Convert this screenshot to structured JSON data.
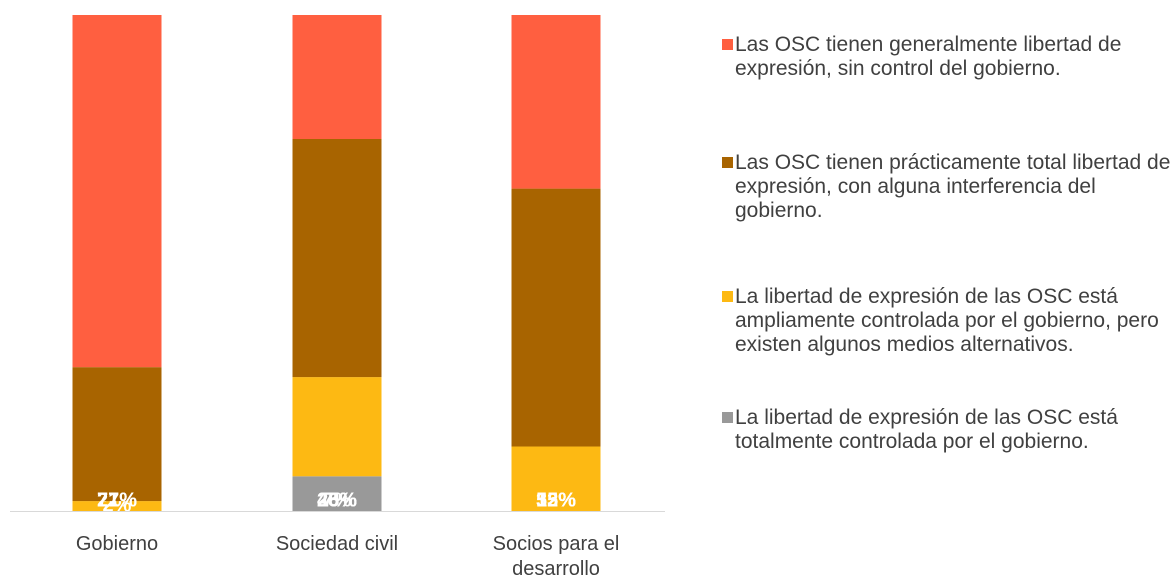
{
  "chart_data": {
    "type": "stacked_bar",
    "categories": [
      "Gobierno",
      "Sociedad civil",
      "Socios para el desarrollo"
    ],
    "series": [
      {
        "name": "Las OSC tienen generalmente libertad de expresión, sin control del gobierno.",
        "color": "#ff5f40",
        "values": [
          71,
          25,
          35
        ],
        "value_labels": [
          "71%",
          "25%",
          "35%"
        ]
      },
      {
        "name": "Las OSC tienen prácticamente total libertad de expresión, con alguna interferencia del gobierno.",
        "color": "#a86400",
        "values": [
          27,
          48,
          52
        ],
        "value_labels": [
          "27%",
          "48%",
          "52%"
        ]
      },
      {
        "name": "La libertad de expresión de las OSC está ampliamente controlada por el gobierno, pero existen algunos medios alternativos.",
        "color": "#fdb913",
        "values": [
          2,
          20,
          13
        ],
        "value_labels": [
          "2%",
          "20%",
          "13%"
        ]
      },
      {
        "name": "La libertad de expresión de las OSC está totalmente controlada por el gobierno.",
        "color": "#999999",
        "values": [
          null,
          7,
          null
        ],
        "value_labels": [
          null,
          "7%",
          null
        ]
      }
    ],
    "ylim": [
      0,
      100
    ],
    "legend": "right"
  }
}
